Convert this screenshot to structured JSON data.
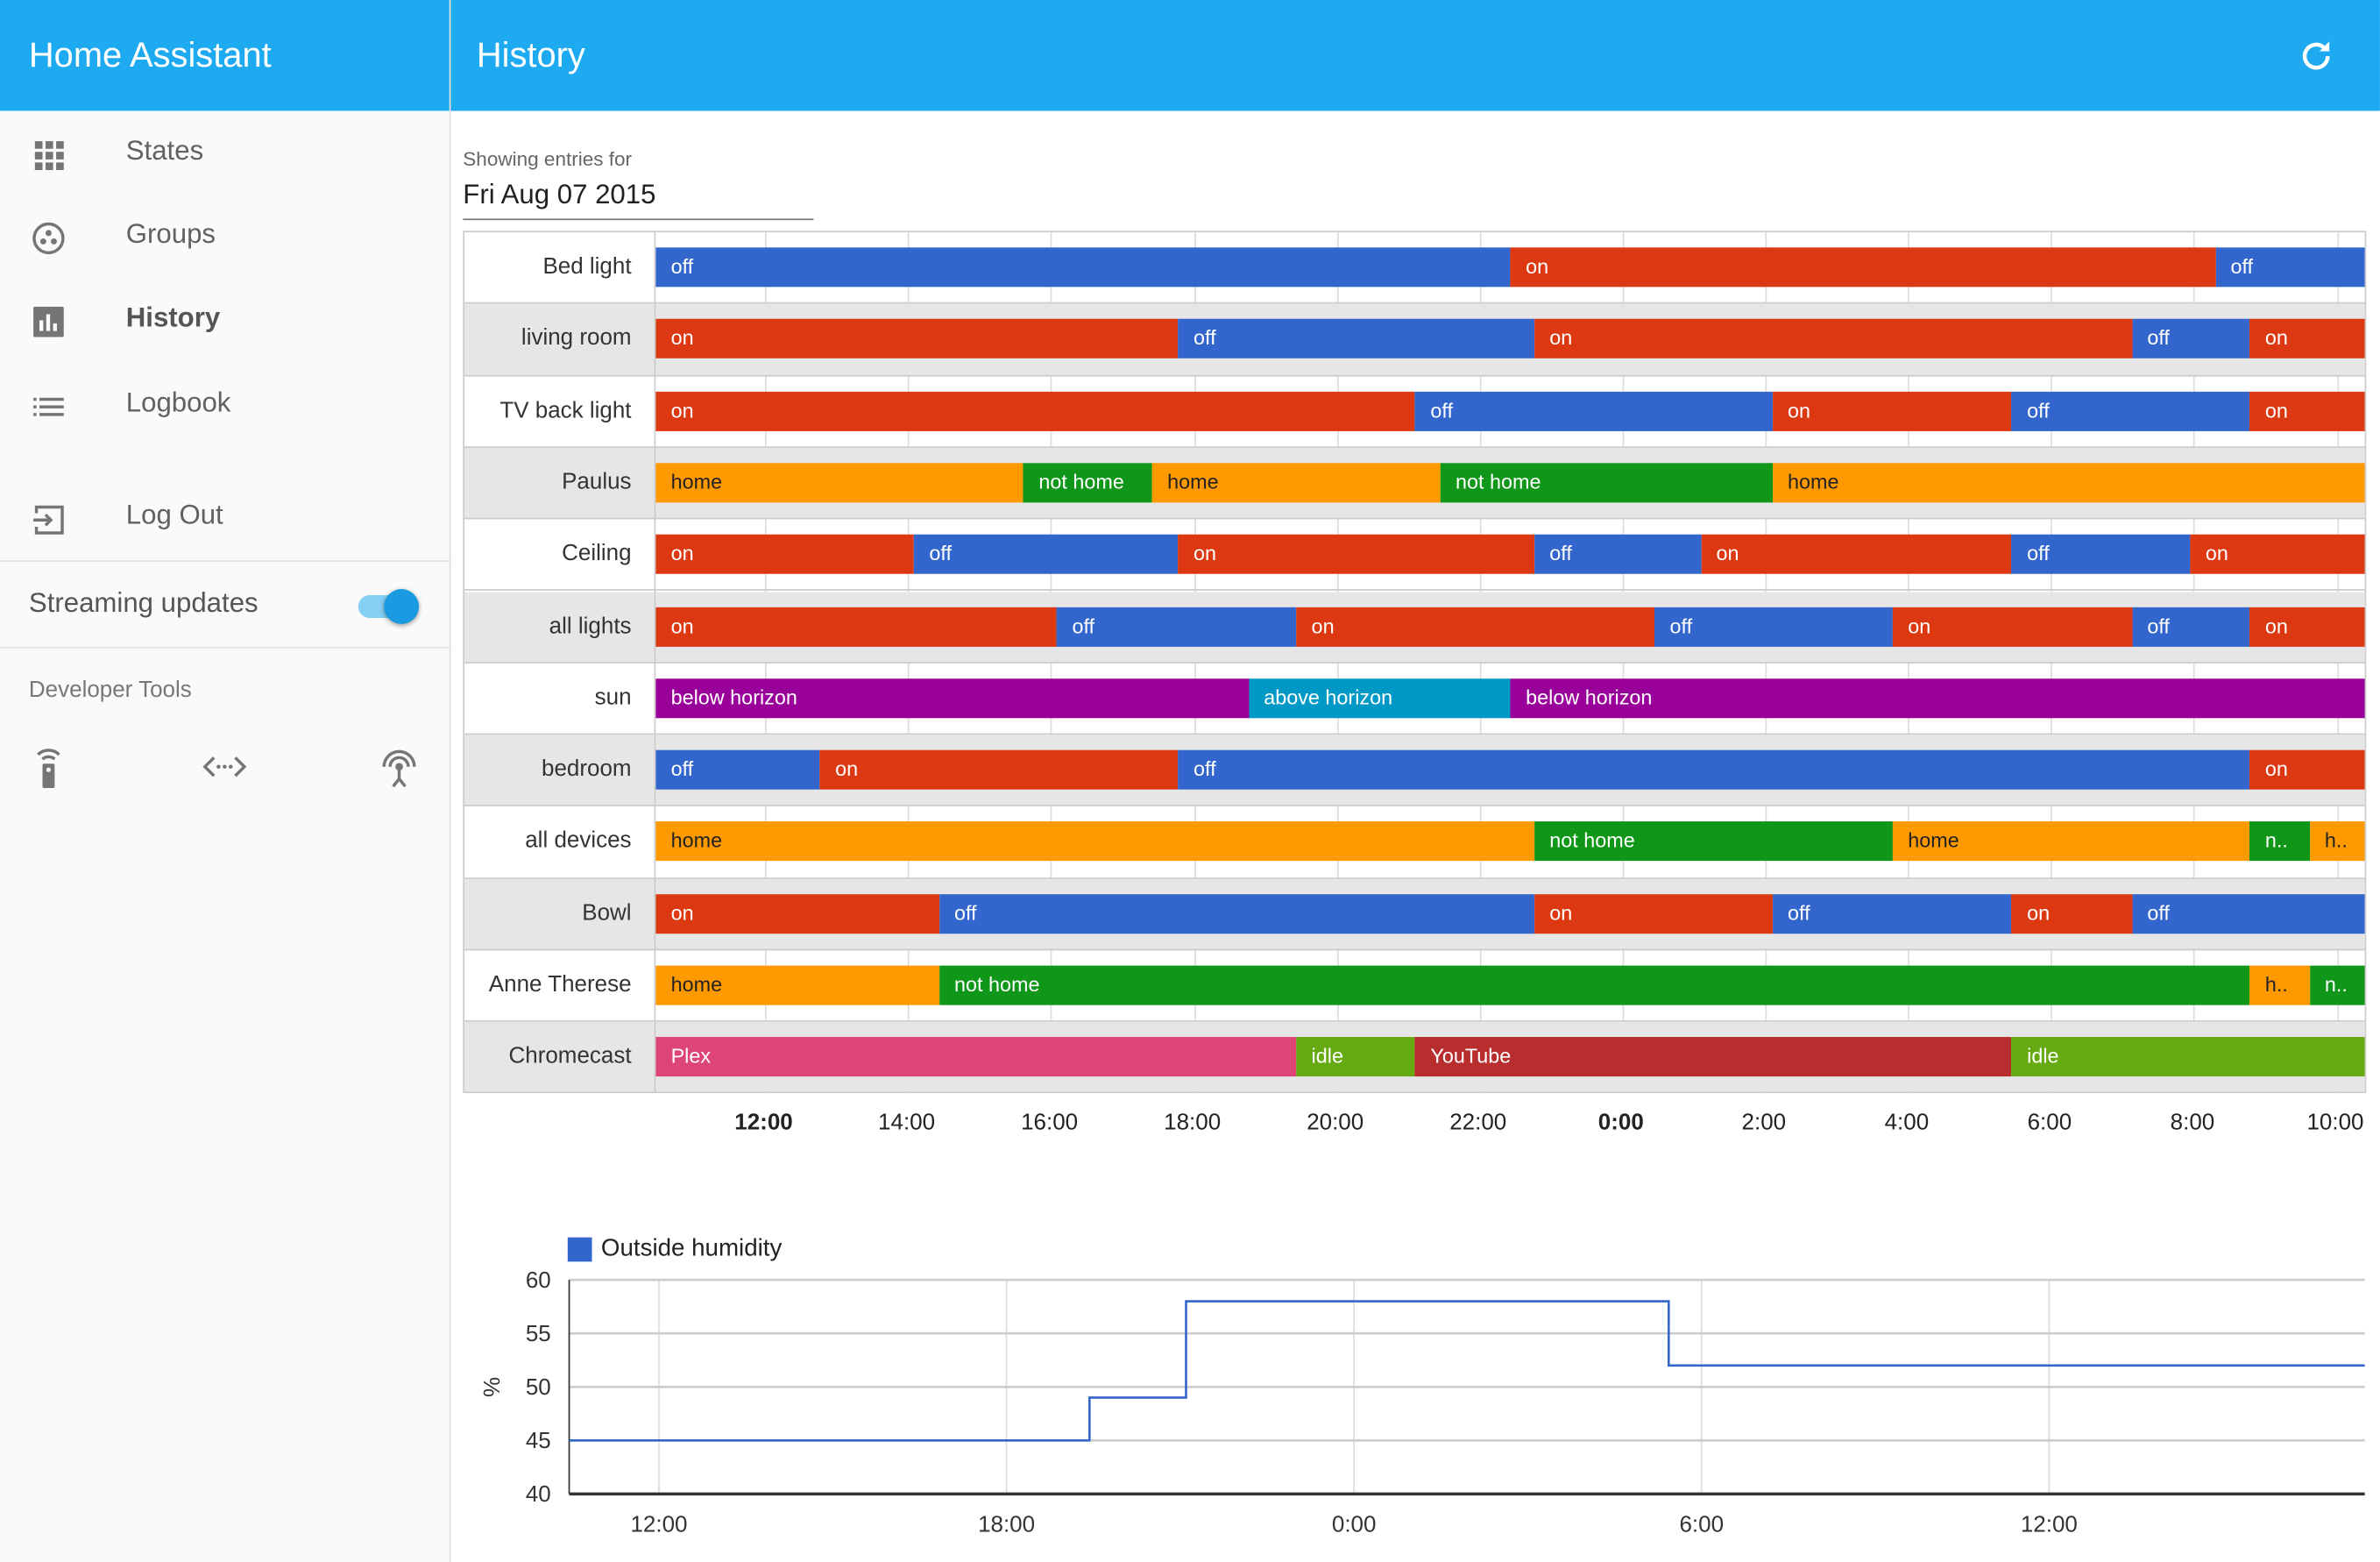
{
  "app_title": "Home Assistant",
  "sidebar": {
    "items": [
      {
        "label": "States",
        "icon": "apps-grid-icon"
      },
      {
        "label": "Groups",
        "icon": "google-circles-icon"
      },
      {
        "label": "History",
        "icon": "chart-bar-icon",
        "active": true
      },
      {
        "label": "Logbook",
        "icon": "list-icon"
      },
      {
        "label": "Log Out",
        "icon": "exit-to-app-icon"
      }
    ],
    "streaming_label": "Streaming updates",
    "streaming_on": true,
    "dev_tools_label": "Developer Tools",
    "dev_tools_icons": [
      "remote-icon",
      "code-brackets-icon",
      "broadcast-tower-icon"
    ]
  },
  "header": {
    "title": "History",
    "refresh_icon": "refresh-icon"
  },
  "filter": {
    "showing_label": "Showing entries for",
    "date": "Fri Aug 07 2015"
  },
  "colors": {
    "off": "#3366cc",
    "on": "#dc3912",
    "home": "#ff9900",
    "not home": "#109618",
    "below horizon": "#990099",
    "above horizon": "#0099c6",
    "Plex": "#dd4477",
    "idle": "#66aa11",
    "YouTube": "#b82e2e",
    "header": "#1eaaf1"
  },
  "timeline": {
    "start": "10:28",
    "end": "10:26",
    "ticks": [
      "12:00",
      "14:00",
      "16:00",
      "18:00",
      "20:00",
      "22:00",
      "0:00",
      "2:00",
      "4:00",
      "6:00",
      "8:00",
      "10:00"
    ],
    "bold_ticks": [
      "12:00",
      "0:00"
    ],
    "rows": [
      {
        "name": "Bed light",
        "segments": [
          {
            "state": "off",
            "start": "10:28"
          },
          {
            "state": "on",
            "start": "22:26"
          },
          {
            "state": "off",
            "start": "8:18"
          }
        ]
      },
      {
        "name": "living room",
        "segments": [
          {
            "state": "on",
            "start": "10:28"
          },
          {
            "state": "off",
            "start": "17:47"
          },
          {
            "state": "on",
            "start": "22:46"
          },
          {
            "state": "off",
            "start": "7:08"
          },
          {
            "state": "on",
            "start": "8:47"
          }
        ]
      },
      {
        "name": "TV back light",
        "segments": [
          {
            "state": "on",
            "start": "10:28"
          },
          {
            "state": "off",
            "start": "21:06"
          },
          {
            "state": "on",
            "start": "2:06"
          },
          {
            "state": "off",
            "start": "5:27"
          },
          {
            "state": "on",
            "start": "8:47"
          }
        ]
      },
      {
        "name": "Paulus",
        "segments": [
          {
            "state": "home",
            "start": "10:28"
          },
          {
            "state": "not home",
            "start": "15:37"
          },
          {
            "state": "home",
            "start": "17:25"
          },
          {
            "state": "not home",
            "start": "21:27"
          },
          {
            "state": "home",
            "start": "2:06"
          }
        ]
      },
      {
        "name": "Ceiling",
        "segments": [
          {
            "state": "on",
            "start": "10:28"
          },
          {
            "state": "off",
            "start": "14:05"
          },
          {
            "state": "on",
            "start": "17:47"
          },
          {
            "state": "off",
            "start": "22:46"
          },
          {
            "state": "on",
            "start": "1:06"
          },
          {
            "state": "off",
            "start": "5:27"
          },
          {
            "state": "on",
            "start": "7:57"
          }
        ]
      },
      {
        "name": "all lights",
        "segments": [
          {
            "state": "on",
            "start": "10:28"
          },
          {
            "state": "off",
            "start": "16:05"
          },
          {
            "state": "on",
            "start": "19:26"
          },
          {
            "state": "off",
            "start": "0:27"
          },
          {
            "state": "on",
            "start": "3:47"
          },
          {
            "state": "off",
            "start": "7:08"
          },
          {
            "state": "on",
            "start": "8:47"
          }
        ]
      },
      {
        "name": "sun",
        "segments": [
          {
            "state": "below horizon",
            "start": "10:28"
          },
          {
            "state": "above horizon",
            "start": "18:46"
          },
          {
            "state": "below horizon",
            "start": "22:26"
          }
        ]
      },
      {
        "name": "bedroom",
        "segments": [
          {
            "state": "off",
            "start": "10:28"
          },
          {
            "state": "on",
            "start": "12:46"
          },
          {
            "state": "off",
            "start": "17:47"
          },
          {
            "state": "on",
            "start": "8:47"
          }
        ]
      },
      {
        "name": "all devices",
        "segments": [
          {
            "state": "home",
            "start": "10:28"
          },
          {
            "state": "not home",
            "start": "22:46"
          },
          {
            "state": "home",
            "start": "3:47"
          },
          {
            "state": "not home",
            "label": "n..",
            "start": "8:47"
          },
          {
            "state": "home",
            "label": "h..",
            "start": "9:37"
          }
        ]
      },
      {
        "name": "Bowl",
        "segments": [
          {
            "state": "on",
            "start": "10:28"
          },
          {
            "state": "off",
            "start": "14:26"
          },
          {
            "state": "on",
            "start": "22:46"
          },
          {
            "state": "off",
            "start": "2:06"
          },
          {
            "state": "on",
            "start": "5:27"
          },
          {
            "state": "off",
            "start": "7:08"
          }
        ]
      },
      {
        "name": "Anne Therese",
        "segments": [
          {
            "state": "home",
            "start": "10:28"
          },
          {
            "state": "not home",
            "start": "14:26"
          },
          {
            "state": "home",
            "label": "h..",
            "start": "8:47"
          },
          {
            "state": "not home",
            "label": "n..",
            "start": "9:37"
          }
        ]
      },
      {
        "name": "Chromecast",
        "segments": [
          {
            "state": "Plex",
            "start": "10:28"
          },
          {
            "state": "idle",
            "start": "19:26"
          },
          {
            "state": "YouTube",
            "start": "21:06"
          },
          {
            "state": "idle",
            "start": "5:27"
          }
        ]
      }
    ]
  },
  "chart_data": {
    "type": "line",
    "legend": "Outside humidity",
    "legend_placement": "top-left",
    "ylabel": "%",
    "ylim": [
      40,
      60
    ],
    "yticks": [
      40,
      45,
      50,
      55,
      60
    ],
    "xlim": [
      "10:27",
      "17:27"
    ],
    "xticks": [
      "12:00",
      "18:00",
      "0:00",
      "6:00",
      "12:00"
    ],
    "step": true,
    "grid": true,
    "color": "#3366cc",
    "points": [
      {
        "x": "10:27",
        "y": 45
      },
      {
        "x": "19:26",
        "y": 49
      },
      {
        "x": "21:06",
        "y": 58
      },
      {
        "x": "5:26",
        "y": 52
      },
      {
        "x": "17:27",
        "y": 52
      }
    ]
  }
}
